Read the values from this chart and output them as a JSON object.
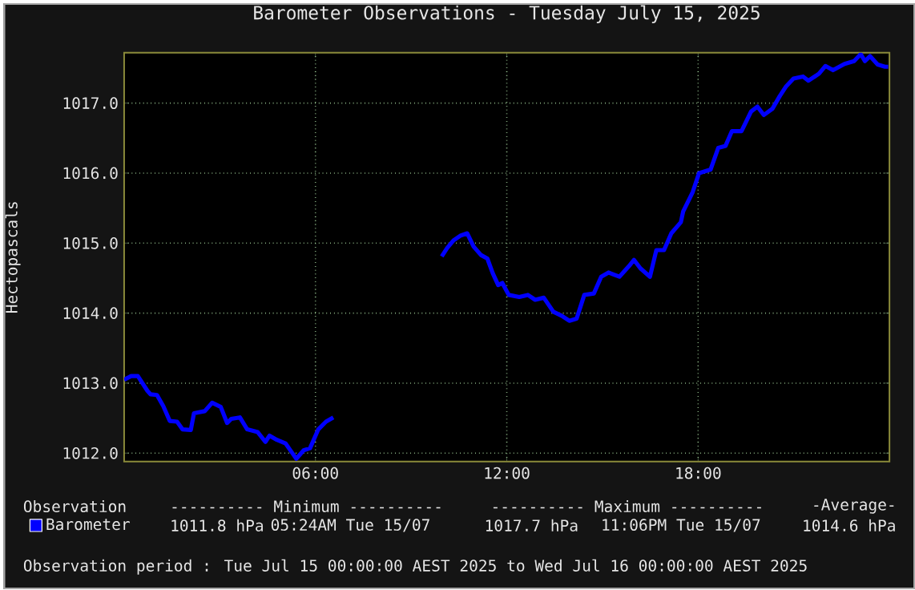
{
  "chart_data": {
    "type": "line",
    "title": "Barometer Observations - Tuesday July 15, 2025",
    "ylabel": "Hectopascals",
    "xlim": [
      0,
      24
    ],
    "xticks": [
      {
        "value": 6,
        "label": "06:00"
      },
      {
        "value": 12,
        "label": "12:00"
      },
      {
        "value": 18,
        "label": "18:00"
      }
    ],
    "ylim": [
      1011.88,
      1017.72
    ],
    "yticks": [
      {
        "value": 1012,
        "label": "1012.0"
      },
      {
        "value": 1013,
        "label": "1013.0"
      },
      {
        "value": 1014,
        "label": "1014.0"
      },
      {
        "value": 1015,
        "label": "1015.0"
      },
      {
        "value": 1016,
        "label": "1016.0"
      },
      {
        "value": 1017,
        "label": "1017.0"
      }
    ],
    "grid": true,
    "legend": "bottom left",
    "marker": "none",
    "line_style": "solid",
    "series": [
      {
        "name": "Barometer",
        "color": "#0000ff",
        "x": [
          0,
          0.22,
          0.43,
          0.73,
          0.83,
          1.03,
          1.23,
          1.43,
          1.66,
          1.83,
          2.09,
          2.19,
          2.53,
          2.76,
          3.03,
          3.23,
          3.36,
          3.63,
          3.86,
          4.19,
          4.43,
          4.56,
          4.79,
          5.06,
          5.26,
          5.4,
          5.63,
          5.83,
          6.09,
          6.33,
          6.56,
          8.25,
          9.96,
          10.13,
          10.33,
          10.56,
          10.76,
          10.96,
          11.19,
          11.39,
          11.56,
          11.73,
          11.86,
          12.06,
          12.39,
          12.66,
          12.89,
          13.16,
          13.46,
          13.73,
          13.96,
          14.19,
          14.43,
          14.73,
          14.96,
          15.19,
          15.53,
          15.83,
          15.99,
          16.19,
          16.49,
          16.69,
          16.93,
          17.16,
          17.46,
          17.53,
          17.83,
          18.03,
          18.39,
          18.63,
          18.86,
          19.06,
          19.36,
          19.66,
          19.86,
          20.06,
          20.33,
          20.56,
          20.76,
          20.99,
          21.29,
          21.46,
          21.79,
          21.99,
          22.23,
          22.59,
          22.89,
          23.1,
          23.23,
          23.39,
          23.63,
          23.86,
          23.96
        ],
        "values": [
          1013.05,
          1013.1,
          1013.1,
          1012.89,
          1012.84,
          1012.83,
          1012.67,
          1012.46,
          1012.45,
          1012.34,
          1012.33,
          1012.57,
          1012.6,
          1012.72,
          1012.66,
          1012.43,
          1012.49,
          1012.51,
          1012.34,
          1012.3,
          1012.16,
          1012.25,
          1012.19,
          1012.14,
          1012.01,
          1011.92,
          1012.04,
          1012.07,
          1012.34,
          1012.45,
          1012.51,
          null,
          1014.81,
          1014.93,
          1015.04,
          1015.11,
          1015.14,
          1014.95,
          1014.83,
          1014.78,
          1014.57,
          1014.4,
          1014.43,
          1014.26,
          1014.23,
          1014.26,
          1014.19,
          1014.22,
          1014.02,
          1013.96,
          1013.89,
          1013.92,
          1014.26,
          1014.28,
          1014.52,
          1014.58,
          1014.52,
          1014.67,
          1014.76,
          1014.64,
          1014.52,
          1014.9,
          1014.9,
          1015.14,
          1015.3,
          1015.45,
          1015.73,
          1016.0,
          1016.05,
          1016.36,
          1016.39,
          1016.6,
          1016.6,
          1016.88,
          1016.95,
          1016.83,
          1016.92,
          1017.1,
          1017.24,
          1017.35,
          1017.38,
          1017.32,
          1017.42,
          1017.53,
          1017.47,
          1017.56,
          1017.6,
          1017.7,
          1017.6,
          1017.67,
          1017.55,
          1017.52,
          1017.52
        ]
      }
    ],
    "annotations": [
      "Observation",
      "---------- Minimum ----------",
      "---------- Maximum ----------",
      "-Average-",
      "1011.8 hPa",
      "05:24AM Tue 15/07",
      "1017.7 hPa",
      "11:06PM Tue 15/07",
      "1014.6 hPa",
      "Observation period : Tue Jul 15 00:00:00 AEST 2025 to Wed Jul 16 00:00:00 AEST 2025"
    ]
  }
}
